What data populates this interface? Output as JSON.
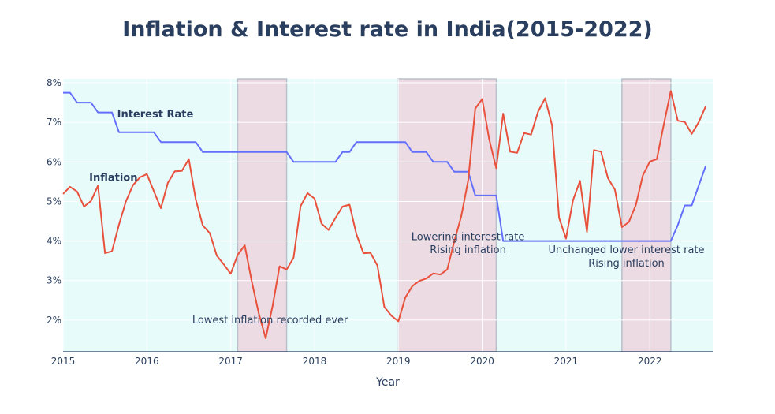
{
  "chart_data": {
    "type": "line",
    "title": "Inflation & Interest rate in India(2015-2022)",
    "xlabel": "Year",
    "ylabel": "",
    "xlim": [
      2015.0,
      2022.75
    ],
    "ylim": [
      1.2,
      8.1
    ],
    "xticks": [
      2015,
      2016,
      2017,
      2018,
      2019,
      2020,
      2021,
      2022
    ],
    "xtick_labels": [
      "2015",
      "2016",
      "2017",
      "2018",
      "2019",
      "2020",
      "2021",
      "2022"
    ],
    "yticks": [
      2,
      3,
      4,
      5,
      6,
      7,
      8
    ],
    "ytick_labels": [
      "2%",
      "3%",
      "4%",
      "5%",
      "6%",
      "7%",
      "8%"
    ],
    "grid": true,
    "background_color": "#e8fbfb",
    "series": [
      {
        "name": "Interest Rate",
        "color": "#636efa",
        "x": [
          2015.0,
          2015.083,
          2015.167,
          2015.25,
          2015.333,
          2015.417,
          2015.5,
          2015.583,
          2015.667,
          2015.75,
          2015.833,
          2015.917,
          2016.0,
          2016.083,
          2016.167,
          2016.25,
          2016.333,
          2016.417,
          2016.5,
          2016.583,
          2016.667,
          2016.75,
          2016.833,
          2016.917,
          2017.0,
          2017.083,
          2017.167,
          2017.25,
          2017.333,
          2017.417,
          2017.5,
          2017.583,
          2017.667,
          2017.75,
          2017.833,
          2017.917,
          2018.0,
          2018.083,
          2018.167,
          2018.25,
          2018.333,
          2018.417,
          2018.5,
          2018.583,
          2018.667,
          2018.75,
          2018.833,
          2018.917,
          2019.0,
          2019.083,
          2019.167,
          2019.25,
          2019.333,
          2019.417,
          2019.5,
          2019.583,
          2019.667,
          2019.75,
          2019.833,
          2019.917,
          2020.0,
          2020.083,
          2020.167,
          2020.25,
          2020.333,
          2020.417,
          2020.5,
          2020.583,
          2020.667,
          2020.75,
          2020.833,
          2020.917,
          2021.0,
          2021.083,
          2021.167,
          2021.25,
          2021.333,
          2021.417,
          2021.5,
          2021.583,
          2021.667,
          2021.75,
          2021.833,
          2021.917,
          2022.0,
          2022.083,
          2022.167,
          2022.25,
          2022.333,
          2022.417,
          2022.5,
          2022.583,
          2022.667
        ],
        "values": [
          7.75,
          7.75,
          7.5,
          7.5,
          7.5,
          7.25,
          7.25,
          7.25,
          6.75,
          6.75,
          6.75,
          6.75,
          6.75,
          6.75,
          6.5,
          6.5,
          6.5,
          6.5,
          6.5,
          6.5,
          6.25,
          6.25,
          6.25,
          6.25,
          6.25,
          6.25,
          6.25,
          6.25,
          6.25,
          6.25,
          6.25,
          6.25,
          6.25,
          6.0,
          6.0,
          6.0,
          6.0,
          6.0,
          6.0,
          6.0,
          6.25,
          6.25,
          6.5,
          6.5,
          6.5,
          6.5,
          6.5,
          6.5,
          6.5,
          6.5,
          6.25,
          6.25,
          6.25,
          6.0,
          6.0,
          6.0,
          5.75,
          5.75,
          5.75,
          5.15,
          5.15,
          5.15,
          5.15,
          4.0,
          4.0,
          4.0,
          4.0,
          4.0,
          4.0,
          4.0,
          4.0,
          4.0,
          4.0,
          4.0,
          4.0,
          4.0,
          4.0,
          4.0,
          4.0,
          4.0,
          4.0,
          4.0,
          4.0,
          4.0,
          4.0,
          4.0,
          4.0,
          4.0,
          4.4,
          4.9,
          4.9,
          5.4,
          5.9
        ]
      },
      {
        "name": "Inflation",
        "color": "#e8513c",
        "x": [
          2015.0,
          2015.083,
          2015.167,
          2015.25,
          2015.333,
          2015.417,
          2015.5,
          2015.583,
          2015.667,
          2015.75,
          2015.833,
          2015.917,
          2016.0,
          2016.083,
          2016.167,
          2016.25,
          2016.333,
          2016.417,
          2016.5,
          2016.583,
          2016.667,
          2016.75,
          2016.833,
          2016.917,
          2017.0,
          2017.083,
          2017.167,
          2017.25,
          2017.333,
          2017.417,
          2017.5,
          2017.583,
          2017.667,
          2017.75,
          2017.833,
          2017.917,
          2018.0,
          2018.083,
          2018.167,
          2018.25,
          2018.333,
          2018.417,
          2018.5,
          2018.583,
          2018.667,
          2018.75,
          2018.833,
          2018.917,
          2019.0,
          2019.083,
          2019.167,
          2019.25,
          2019.333,
          2019.417,
          2019.5,
          2019.583,
          2019.667,
          2019.75,
          2019.833,
          2019.917,
          2020.0,
          2020.083,
          2020.167,
          2020.25,
          2020.333,
          2020.417,
          2020.5,
          2020.583,
          2020.667,
          2020.75,
          2020.833,
          2020.917,
          2021.0,
          2021.083,
          2021.167,
          2021.25,
          2021.333,
          2021.417,
          2021.5,
          2021.583,
          2021.667,
          2021.75,
          2021.833,
          2021.917,
          2022.0,
          2022.083,
          2022.167,
          2022.25,
          2022.333,
          2022.417,
          2022.5,
          2022.583,
          2022.667
        ],
        "values": [
          5.19,
          5.37,
          5.25,
          4.87,
          5.01,
          5.4,
          3.69,
          3.74,
          4.41,
          5.0,
          5.41,
          5.61,
          5.69,
          5.26,
          4.83,
          5.47,
          5.76,
          5.77,
          6.07,
          5.05,
          4.39,
          4.2,
          3.63,
          3.41,
          3.17,
          3.65,
          3.89,
          2.99,
          2.18,
          1.54,
          2.36,
          3.36,
          3.28,
          3.58,
          4.88,
          5.21,
          5.07,
          4.44,
          4.28,
          4.58,
          4.87,
          4.92,
          4.17,
          3.69,
          3.7,
          3.38,
          2.33,
          2.11,
          1.97,
          2.57,
          2.86,
          2.99,
          3.05,
          3.18,
          3.15,
          3.28,
          3.99,
          4.62,
          5.54,
          7.35,
          7.59,
          6.58,
          5.84,
          7.22,
          6.26,
          6.23,
          6.73,
          6.69,
          7.27,
          7.61,
          6.93,
          4.59,
          4.06,
          5.03,
          5.52,
          4.23,
          6.3,
          6.26,
          5.59,
          5.3,
          4.35,
          4.48,
          4.91,
          5.66,
          6.01,
          6.07,
          6.95,
          7.79,
          7.04,
          7.01,
          6.71,
          7.0,
          7.41
        ]
      }
    ],
    "shaded_periods": [
      {
        "x0": 2017.083,
        "x1": 2017.667
      },
      {
        "x0": 2019.0,
        "x1": 2020.167
      },
      {
        "x0": 2021.667,
        "x1": 2022.25
      }
    ],
    "series_labels": [
      {
        "text": "Interest Rate",
        "x": 2016.1,
        "y": 7.2
      },
      {
        "text": "Inflation",
        "x": 2015.6,
        "y": 5.6
      }
    ],
    "annotations": [
      {
        "text": "Lowest inflation recorded ever",
        "x": 2017.47,
        "y": 2.0
      },
      {
        "text": "Lowering interest rate",
        "x": 2019.83,
        "y": 4.1
      },
      {
        "text": "Rising inflation",
        "x": 2019.83,
        "y": 3.77
      },
      {
        "text": "Unchanged lower interest rate",
        "x": 2021.72,
        "y": 3.77
      },
      {
        "text": "Rising inflation",
        "x": 2021.72,
        "y": 3.43
      }
    ]
  }
}
